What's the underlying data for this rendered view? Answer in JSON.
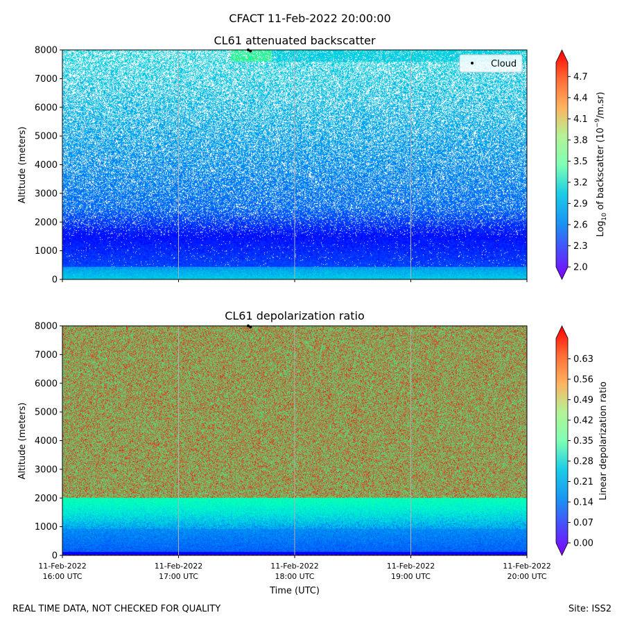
{
  "figure": {
    "title": "CFACT 11-Feb-2022 20:00:00",
    "footer_left": "REAL TIME DATA, NOT CHECKED FOR QUALITY",
    "footer_right": "Site: ISS2"
  },
  "chart_data": [
    {
      "type": "heatmap",
      "title": "CL61 attenuated backscatter",
      "xlabel": "",
      "ylabel": "Altitude (meters)",
      "xlim_hours": [
        16,
        20
      ],
      "ylim": [
        0,
        8000
      ],
      "yticks": [
        "0",
        "1000",
        "2000",
        "3000",
        "4000",
        "5000",
        "6000",
        "7000",
        "8000"
      ],
      "grid": "vertical",
      "colormap": "rainbow",
      "colorbar": {
        "label_main": "Log",
        "label_sub": "10",
        "label_mid": " of backscatter (10",
        "label_sup": "−9",
        "label_end": "/m.sr)",
        "range": [
          2.0,
          4.9
        ],
        "ticks": [
          "2.0",
          "2.3",
          "2.6",
          "2.9",
          "3.2",
          "3.5",
          "3.8",
          "4.1",
          "4.4",
          "4.7"
        ],
        "extend": "both"
      },
      "legend": {
        "entries": [
          "Cloud"
        ],
        "placement": "top-right"
      },
      "annotations": {
        "cloud_points": [
          [
            17.6,
            8000
          ],
          [
            17.62,
            7960
          ]
        ],
        "high_feature": {
          "time_start": 17.45,
          "time_end": 17.8,
          "alt_min": 7600,
          "alt_max": 8000,
          "value": 3.7
        }
      },
      "profile": {
        "surface_layer_top": 420,
        "surface_value": 2.6,
        "residual_layer_top": 1500,
        "min_value": 2.05,
        "upper_value": 2.9,
        "upper_sparsity_start": 2500
      }
    },
    {
      "type": "heatmap",
      "title": "CL61 depolarization ratio",
      "xlabel": "Time (UTC)",
      "ylabel": "Altitude (meters)",
      "xlim_hours": [
        16,
        20
      ],
      "ylim": [
        0,
        8000
      ],
      "yticks": [
        "0",
        "1000",
        "2000",
        "3000",
        "4000",
        "5000",
        "6000",
        "7000",
        "8000"
      ],
      "xticks": [
        {
          "date": "11-Feb-2022",
          "time": "16:00 UTC"
        },
        {
          "date": "11-Feb-2022",
          "time": "17:00 UTC"
        },
        {
          "date": "11-Feb-2022",
          "time": "18:00 UTC"
        },
        {
          "date": "11-Feb-2022",
          "time": "19:00 UTC"
        },
        {
          "date": "11-Feb-2022",
          "time": "20:00 UTC"
        }
      ],
      "grid": "vertical",
      "colormap": "rainbow",
      "colorbar": {
        "label": "Linear depolarization ratio",
        "range": [
          0.0,
          0.7
        ],
        "ticks": [
          "0.00",
          "0.07",
          "0.14",
          "0.21",
          "0.28",
          "0.35",
          "0.42",
          "0.49",
          "0.56",
          "0.63"
        ],
        "extend": "both"
      },
      "annotations": {
        "cloud_points": [
          [
            17.6,
            8000
          ],
          [
            17.62,
            7960
          ]
        ]
      },
      "profile": {
        "low_top": 900,
        "low_value": 0.08,
        "transition_top": 2000,
        "transition_value": 0.35,
        "upper_value": 0.55
      }
    }
  ],
  "colors": {
    "grid": "#b0b0b0",
    "cloud_marker": "#000000",
    "surface_dots": "#d62728"
  }
}
